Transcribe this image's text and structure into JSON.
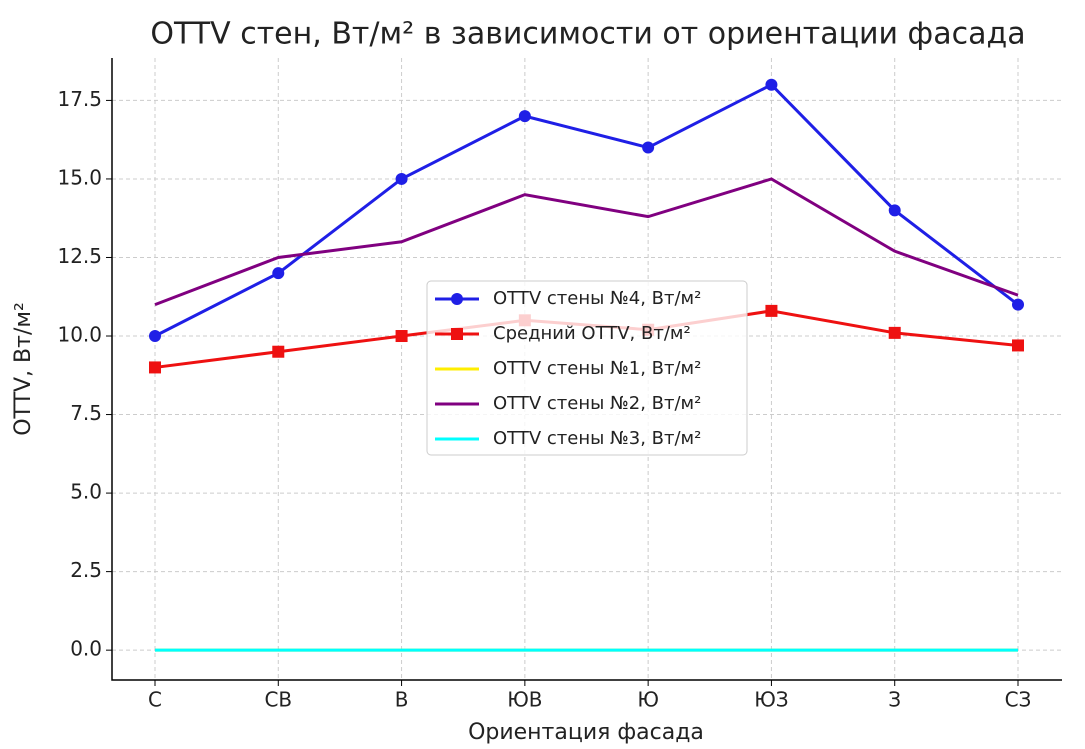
{
  "chart_data": {
    "type": "line",
    "title": "OTTV стен, Вт/м² в зависимости от ориентации фасада",
    "x_label": "Ориентация фасада",
    "y_label": "OTTV, Вт/м²",
    "categories": [
      "С",
      "СВ",
      "В",
      "ЮВ",
      "Ю",
      "ЮЗ",
      "З",
      "СЗ"
    ],
    "series": [
      {
        "name": "OTTV стены №4, Вт/м²",
        "color": "#1f1fe6",
        "marker": "circle",
        "values": [
          10,
          12,
          15,
          17,
          16,
          18,
          14,
          11
        ]
      },
      {
        "name": "Средний OTTV, Вт/м²",
        "color": "#ee1111",
        "marker": "square",
        "values": [
          9,
          9.5,
          10,
          10.5,
          10.2,
          10.8,
          10.1,
          9.7
        ]
      },
      {
        "name": "OTTV стены №1, Вт/м²",
        "color": "#ffee00",
        "marker": null,
        "values": [
          0,
          0,
          0,
          0,
          0,
          0,
          0,
          0
        ]
      },
      {
        "name": "OTTV стены №2, Вт/м²",
        "color": "#800080",
        "marker": null,
        "values": [
          11,
          12.5,
          13,
          14.5,
          13.8,
          15,
          12.7,
          11.3
        ]
      },
      {
        "name": "OTTV стены №3, Вт/м²",
        "color": "#00ffff",
        "marker": null,
        "values": [
          0,
          0,
          0,
          0,
          0,
          0,
          0,
          0
        ]
      }
    ],
    "ylim": [
      -0.95,
      18.85
    ],
    "yticks": [
      {
        "value": 0,
        "label": "0.0"
      },
      {
        "value": 2.5,
        "label": "2.5"
      },
      {
        "value": 5,
        "label": "5.0"
      },
      {
        "value": 7.5,
        "label": "7.5"
      },
      {
        "value": 10,
        "label": "10.0"
      },
      {
        "value": 12.5,
        "label": "12.5"
      },
      {
        "value": 15,
        "label": "15.0"
      },
      {
        "value": 17.5,
        "label": "17.5"
      }
    ],
    "grid": true,
    "legend": "center"
  }
}
